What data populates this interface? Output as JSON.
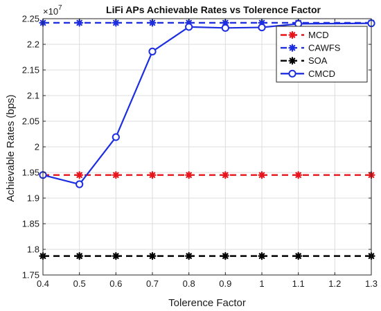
{
  "chart_data": {
    "type": "line",
    "title": "LiFi APs Achievable Rates vs Tolerence Factor",
    "xlabel": "Tolerence Factor",
    "ylabel": "Achievable Rates (bps)",
    "exponent_label": "×10",
    "exponent_power": "7",
    "xlim": [
      0.4,
      1.3
    ],
    "ylim": [
      1.75,
      2.25
    ],
    "x_ticks": [
      "0.4",
      "0.5",
      "0.6",
      "0.7",
      "0.8",
      "0.9",
      "1",
      "1.1",
      "1.2",
      "1.3"
    ],
    "y_ticks": [
      "1.75",
      "1.8",
      "1.85",
      "1.9",
      "1.95",
      "2",
      "2.05",
      "2.1",
      "2.15",
      "2.2",
      "2.25"
    ],
    "grid": true,
    "legend_position": "top-right",
    "x": [
      0.4,
      0.5,
      0.6,
      0.7,
      0.8,
      0.9,
      1.0,
      1.1,
      1.3
    ],
    "series": [
      {
        "name": "MCD",
        "color": "#e8141c",
        "style": "dashed",
        "marker": "star",
        "values": [
          1.945,
          1.945,
          1.945,
          1.945,
          1.945,
          1.945,
          1.945,
          1.945,
          1.945
        ]
      },
      {
        "name": "CAWFS",
        "color": "#1c2ee0",
        "style": "dashed",
        "marker": "star",
        "values": [
          2.242,
          2.242,
          2.242,
          2.242,
          2.242,
          2.242,
          2.242,
          2.242,
          2.242
        ]
      },
      {
        "name": "SOA",
        "color": "#000000",
        "style": "dashed",
        "marker": "star",
        "values": [
          1.787,
          1.787,
          1.787,
          1.787,
          1.787,
          1.787,
          1.787,
          1.787,
          1.787
        ]
      },
      {
        "name": "CMCD",
        "color": "#1c2ee0",
        "style": "solid",
        "marker": "circle",
        "values": [
          1.945,
          1.927,
          2.019,
          2.186,
          2.234,
          2.232,
          2.233,
          2.24,
          2.241
        ]
      }
    ]
  }
}
